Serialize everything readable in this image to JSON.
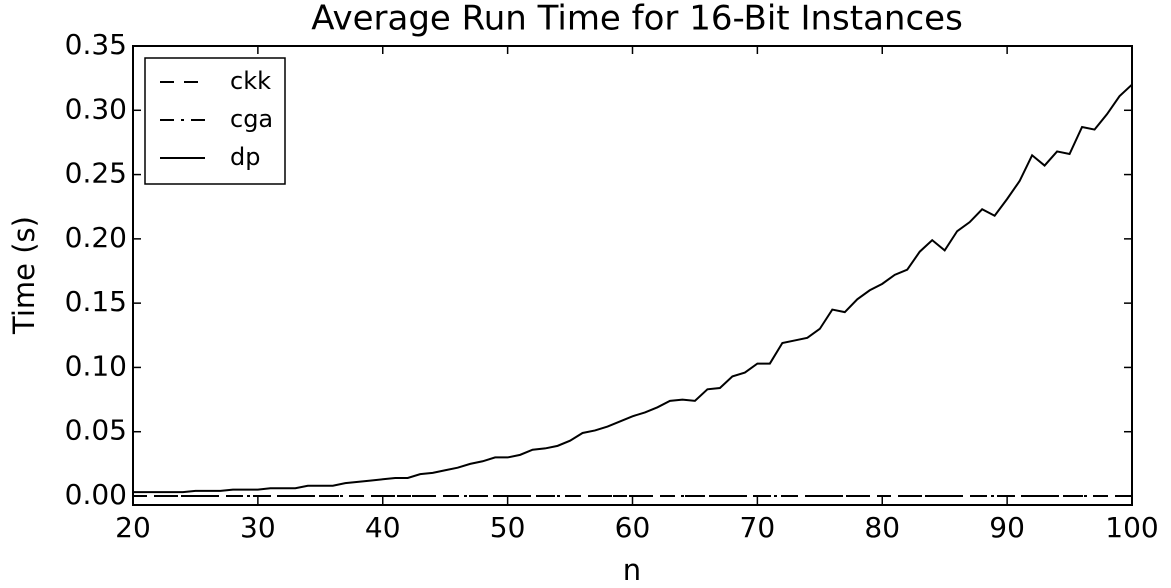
{
  "chart_data": {
    "type": "line",
    "title": "Average Run Time for 16-Bit Instances",
    "xlabel": "n",
    "ylabel": "Time (s)",
    "x": [
      20,
      21,
      22,
      23,
      24,
      25,
      26,
      27,
      28,
      29,
      30,
      31,
      32,
      33,
      34,
      35,
      36,
      37,
      38,
      39,
      40,
      41,
      42,
      43,
      44,
      45,
      46,
      47,
      48,
      49,
      50,
      51,
      52,
      53,
      54,
      55,
      56,
      57,
      58,
      59,
      60,
      61,
      62,
      63,
      64,
      65,
      66,
      67,
      68,
      69,
      70,
      71,
      72,
      73,
      74,
      75,
      76,
      77,
      78,
      79,
      80,
      81,
      82,
      83,
      84,
      85,
      86,
      87,
      88,
      89,
      90,
      91,
      92,
      93,
      94,
      95,
      96,
      97,
      98,
      99,
      100
    ],
    "series": [
      {
        "name": "ckk",
        "color": "#000000",
        "linestyle": "dashed",
        "values": [
          0,
          0,
          0,
          0,
          0,
          0,
          0,
          0,
          0,
          0,
          0,
          0,
          0,
          0,
          0,
          0,
          0,
          0,
          0,
          0,
          0,
          0,
          0,
          0,
          0,
          0,
          0,
          0,
          0,
          0,
          0,
          0,
          0,
          0,
          0,
          0,
          0,
          0,
          0,
          0,
          0,
          0,
          0,
          0,
          0,
          0,
          0,
          0,
          0,
          0,
          0,
          0,
          0,
          0,
          0,
          0,
          0,
          0,
          0,
          0,
          0,
          0,
          0,
          0,
          0,
          0,
          0,
          0,
          0,
          0,
          0,
          0,
          0,
          0,
          0,
          0,
          0,
          0,
          0,
          0,
          0
        ]
      },
      {
        "name": "cga",
        "color": "#000000",
        "linestyle": "dashdot",
        "values": [
          0,
          0,
          0,
          0,
          0,
          0,
          0,
          0,
          0,
          0,
          0,
          0,
          0,
          0,
          0,
          0,
          0,
          0,
          0,
          0,
          0,
          0,
          0,
          0,
          0,
          0,
          0,
          0,
          0,
          0,
          0,
          0,
          0,
          0,
          0,
          0,
          0,
          0,
          0,
          0,
          0,
          0,
          0,
          0,
          0,
          0,
          0,
          0,
          0,
          0,
          0,
          0,
          0,
          0,
          0,
          0,
          0,
          0,
          0,
          0,
          0,
          0,
          0,
          0,
          0,
          0,
          0,
          0,
          0,
          0,
          0,
          0,
          0,
          0,
          0,
          0,
          0,
          0,
          0,
          0,
          0
        ]
      },
      {
        "name": "dp",
        "color": "#000000",
        "linestyle": "solid",
        "values": [
          0.003,
          0.003,
          0.003,
          0.003,
          0.003,
          0.004,
          0.004,
          0.004,
          0.005,
          0.005,
          0.005,
          0.006,
          0.006,
          0.006,
          0.008,
          0.008,
          0.008,
          0.01,
          0.011,
          0.012,
          0.013,
          0.014,
          0.014,
          0.017,
          0.018,
          0.02,
          0.022,
          0.025,
          0.027,
          0.03,
          0.03,
          0.032,
          0.036,
          0.037,
          0.039,
          0.043,
          0.049,
          0.051,
          0.054,
          0.058,
          0.062,
          0.065,
          0.069,
          0.074,
          0.075,
          0.074,
          0.083,
          0.084,
          0.093,
          0.096,
          0.103,
          0.103,
          0.119,
          0.121,
          0.123,
          0.13,
          0.145,
          0.143,
          0.153,
          0.16,
          0.165,
          0.172,
          0.176,
          0.19,
          0.199,
          0.191,
          0.206,
          0.213,
          0.223,
          0.218,
          0.231,
          0.245,
          0.265,
          0.257,
          0.268,
          0.266,
          0.287,
          0.285,
          0.297,
          0.311,
          0.32
        ]
      }
    ],
    "xlim": [
      20,
      100
    ],
    "xticks": [
      20,
      30,
      40,
      50,
      60,
      70,
      80,
      90,
      100
    ],
    "ylim": [
      -0.007,
      0.35
    ],
    "yticks": [
      {
        "value": 0,
        "label": "0.00"
      },
      {
        "value": 0.05,
        "label": "0.05"
      },
      {
        "value": 0.1,
        "label": "0.10"
      },
      {
        "value": 0.15,
        "label": "0.15"
      },
      {
        "value": 0.2,
        "label": "0.20"
      },
      {
        "value": 0.25,
        "label": "0.25"
      },
      {
        "value": 0.3,
        "label": "0.30"
      },
      {
        "value": 0.35,
        "label": "0.35"
      }
    ],
    "grid": false,
    "legend": "upper left"
  }
}
